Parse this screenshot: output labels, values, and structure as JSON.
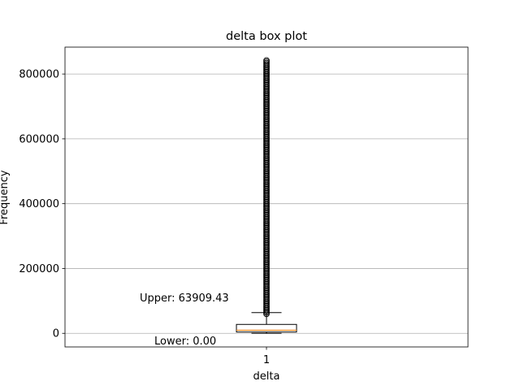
{
  "chart_data": {
    "type": "box",
    "title": "delta box plot",
    "xlabel": "delta",
    "ylabel": "Frequency",
    "ylim": [
      -42000,
      883000
    ],
    "yticks": [
      0,
      200000,
      400000,
      600000,
      800000
    ],
    "ytick_labels": [
      "0",
      "200000",
      "400000",
      "600000",
      "800000"
    ],
    "xtick_labels": [
      "1"
    ],
    "grid": "y",
    "box": {
      "category": "1",
      "whisker_low": 0,
      "q1": 4000,
      "median": 9500,
      "q3": 27500,
      "whisker_high": 63909.43,
      "outlier_min": 57000,
      "outlier_max": 842000
    },
    "annotations": [
      {
        "text": "Upper: 63909.43",
        "y": 63909.43
      },
      {
        "text": "Lower: 0.00",
        "y": 0
      }
    ],
    "colors": {
      "median": "#ff7f0e",
      "box": "#000000",
      "grid": "#b0b0b0",
      "flier": "#000000"
    }
  }
}
